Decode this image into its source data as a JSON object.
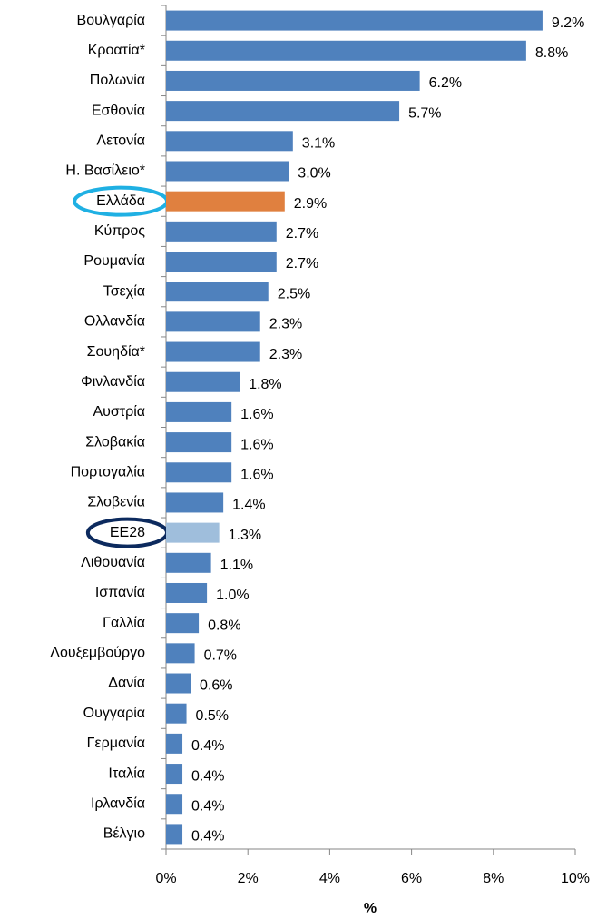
{
  "chart_data": {
    "type": "bar",
    "orientation": "horizontal",
    "categories": [
      "Βουλγαρία",
      "Κροατία*",
      "Πολωνία",
      "Εσθονία",
      "Λετονία",
      "Η. Βασίλειο*",
      "Ελλάδα",
      "Κύπρος",
      "Ρουμανία",
      "Τσεχία",
      "Ολλανδία",
      "Σουηδία*",
      "Φινλανδία",
      "Αυστρία",
      "Σλοβακία",
      "Πορτογαλία",
      "Σλοβενία",
      "ΕΕ28",
      "Λιθουανία",
      "Ισπανία",
      "Γαλλία",
      "Λουξεμβούργο",
      "Δανία",
      "Ουγγαρία",
      "Γερμανία",
      "Ιταλία",
      "Ιρλανδία",
      "Βέλγιο"
    ],
    "values": [
      9.2,
      8.8,
      6.2,
      5.7,
      3.1,
      3.0,
      2.9,
      2.7,
      2.7,
      2.5,
      2.3,
      2.3,
      1.8,
      1.6,
      1.6,
      1.6,
      1.4,
      1.3,
      1.1,
      1.0,
      0.8,
      0.7,
      0.6,
      0.5,
      0.4,
      0.4,
      0.4,
      0.4
    ],
    "value_labels": [
      "9.2%",
      "8.8%",
      "6.2%",
      "5.7%",
      "3.1%",
      "3.0%",
      "2.9%",
      "2.7%",
      "2.7%",
      "2.5%",
      "2.3%",
      "2.3%",
      "1.8%",
      "1.6%",
      "1.6%",
      "1.6%",
      "1.4%",
      "1.3%",
      "1.1%",
      "1.0%",
      "0.8%",
      "0.7%",
      "0.6%",
      "0.5%",
      "0.4%",
      "0.4%",
      "0.4%",
      "0.4%"
    ],
    "colors": [
      "#4f81bd",
      "#4f81bd",
      "#4f81bd",
      "#4f81bd",
      "#4f81bd",
      "#4f81bd",
      "#e0803f",
      "#4f81bd",
      "#4f81bd",
      "#4f81bd",
      "#4f81bd",
      "#4f81bd",
      "#4f81bd",
      "#4f81bd",
      "#4f81bd",
      "#4f81bd",
      "#4f81bd",
      "#9fbedc",
      "#4f81bd",
      "#4f81bd",
      "#4f81bd",
      "#4f81bd",
      "#4f81bd",
      "#4f81bd",
      "#4f81bd",
      "#4f81bd",
      "#4f81bd",
      "#4f81bd"
    ],
    "xlabel": "%",
    "xlim": [
      0,
      10
    ],
    "xticks": [
      {
        "value": 0,
        "label": "0%"
      },
      {
        "value": 2,
        "label": "2%"
      },
      {
        "value": 4,
        "label": "4%"
      },
      {
        "value": 6,
        "label": "6%"
      },
      {
        "value": 8,
        "label": "8%"
      },
      {
        "value": 10,
        "label": "10%"
      }
    ]
  }
}
